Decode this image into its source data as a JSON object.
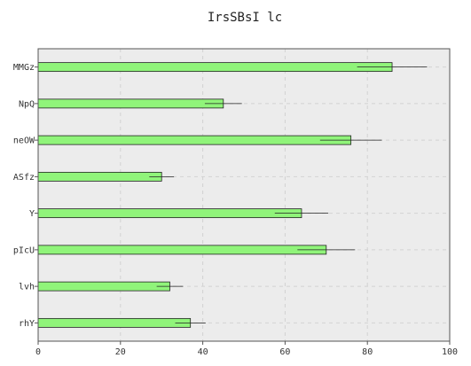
{
  "chart_data": {
    "type": "bar",
    "orientation": "horizontal",
    "title": "IrsSBsI lc",
    "xlabel": "",
    "ylabel": "",
    "xlim": [
      0,
      100
    ],
    "x_ticks": [
      0,
      20,
      40,
      60,
      80,
      100
    ],
    "grid": true,
    "categories": [
      "MMGz",
      "NpQ",
      "neOW",
      "ASfz",
      "Y",
      "pIcU",
      "lvh",
      "rhY"
    ],
    "values": [
      86,
      45,
      76,
      30,
      64,
      70,
      32,
      37
    ],
    "errors": [
      8.5,
      4.5,
      7.5,
      3,
      6.5,
      7,
      3.2,
      3.7
    ],
    "bar_color": "#90f47a",
    "plot_background": "#ececec"
  }
}
